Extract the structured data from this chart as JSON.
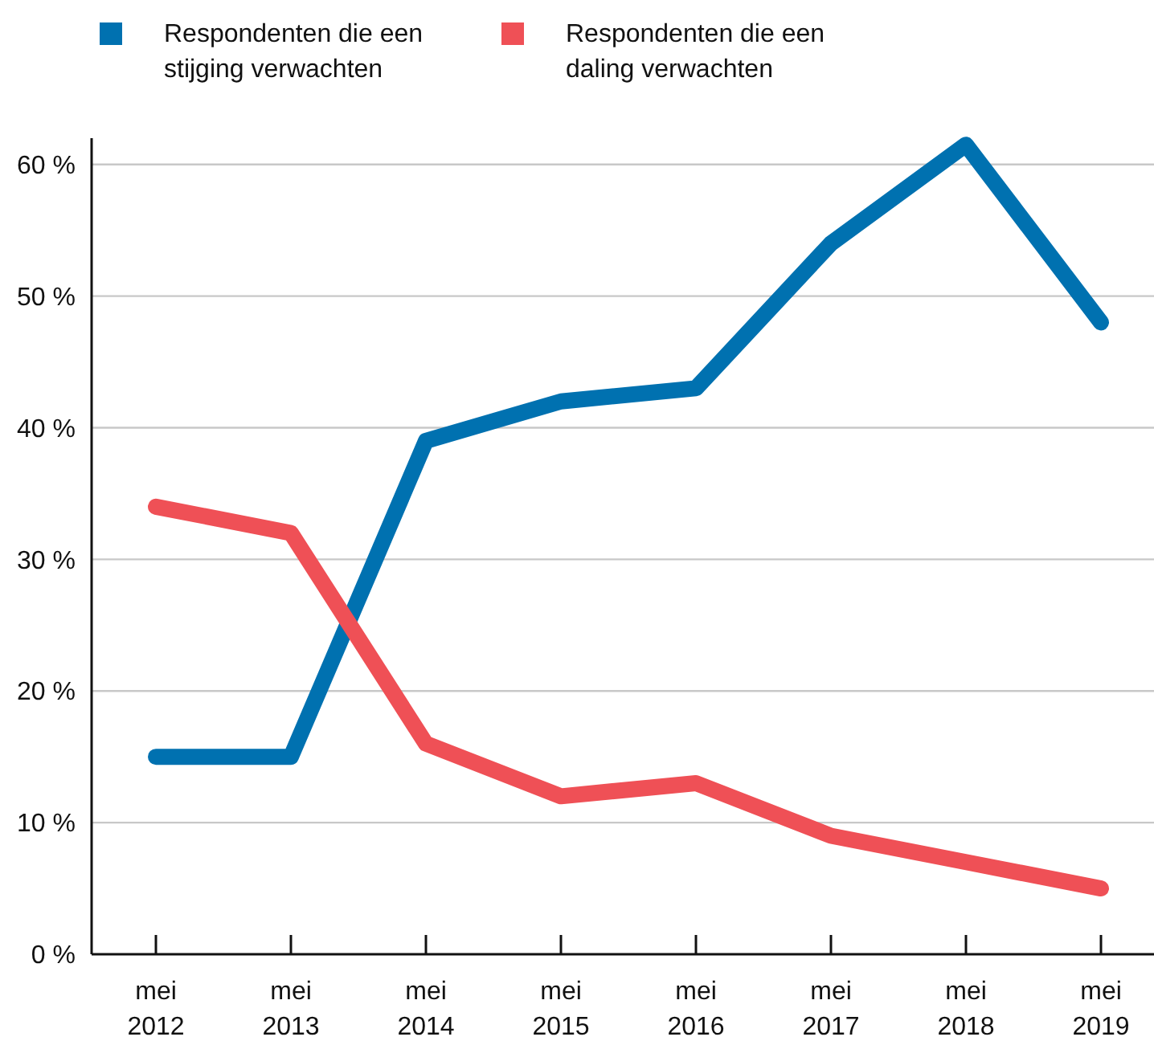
{
  "chart_data": {
    "type": "line",
    "categories": [
      "mei 2012",
      "mei 2013",
      "mei 2014",
      "mei 2015",
      "mei 2016",
      "mei 2017",
      "mei 2018",
      "mei 2019"
    ],
    "series": [
      {
        "name": "Respondenten die een stijging verwachten",
        "color": "#0071b0",
        "values": [
          15,
          15,
          39,
          42,
          43,
          54,
          61.5,
          48
        ]
      },
      {
        "name": "Respondenten die een daling verwachten",
        "color": "#ef5056",
        "values": [
          34,
          32,
          16,
          12,
          13,
          9,
          7,
          5
        ]
      }
    ],
    "ylim": [
      0,
      62
    ],
    "yticks": [
      {
        "value": 0,
        "label": "0 %"
      },
      {
        "value": 10,
        "label": "10 %"
      },
      {
        "value": 20,
        "label": "20 %"
      },
      {
        "value": 30,
        "label": "30 %"
      },
      {
        "value": 40,
        "label": "40 %"
      },
      {
        "value": 50,
        "label": "50 %"
      },
      {
        "value": 60,
        "label": "60 %"
      }
    ],
    "grid": "y",
    "legend": "top left",
    "marker": "none",
    "line_style": "solid"
  }
}
